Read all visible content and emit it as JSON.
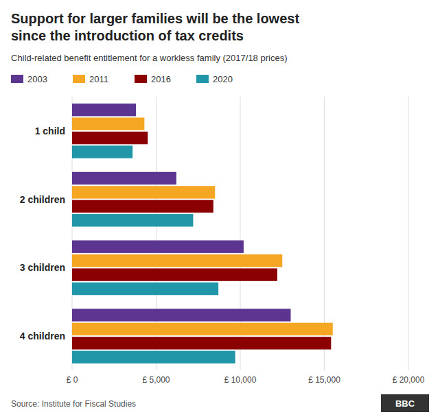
{
  "chart_data": {
    "type": "bar",
    "orientation": "horizontal",
    "title": "Support for larger families will be the lowest\nsince the introduction of tax credits",
    "subtitle": "Child-related benefit entitlement for a workless family (2017/18 prices)",
    "annotations": [
      "Source: Institute for Fiscal Studies",
      "BBC"
    ],
    "categories": [
      "1 child",
      "2 children",
      "3 children",
      "4 children"
    ],
    "series": [
      {
        "name": "2003",
        "color": "#5c3591",
        "values": [
          3800,
          6200,
          10200,
          13000
        ]
      },
      {
        "name": "2011",
        "color": "#f5a623",
        "values": [
          4300,
          8500,
          12500,
          15500
        ]
      },
      {
        "name": "2016",
        "color": "#8b0000",
        "values": [
          4500,
          8400,
          12200,
          15400
        ]
      },
      {
        "name": "2020",
        "color": "#2196a8",
        "values": [
          3600,
          7200,
          8700,
          9700
        ]
      }
    ],
    "xlim": [
      0,
      20000
    ],
    "xticks": [
      {
        "value": 0,
        "label": "£ 0"
      },
      {
        "value": 5000,
        "label": "£ 5,000"
      },
      {
        "value": 10000,
        "label": "£ 10,000"
      },
      {
        "value": 15000,
        "label": "£ 15,000"
      },
      {
        "value": 20000,
        "label": "£ 20,000"
      }
    ],
    "grid": true,
    "legend": "top-left"
  }
}
